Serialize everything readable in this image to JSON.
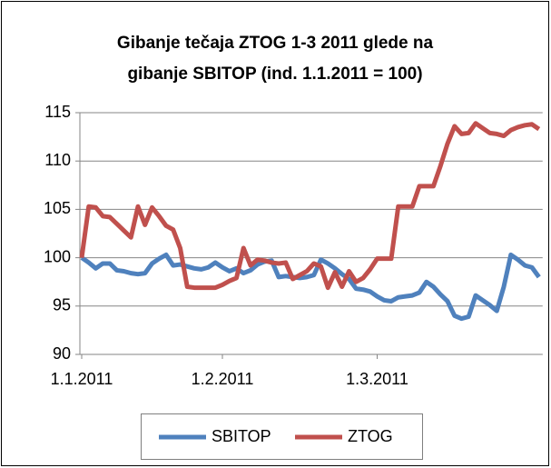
{
  "chart_data": {
    "type": "line",
    "title": [
      "Gibanje tečaja ZTOG 1-3 2011 glede na",
      "gibanje SBITOP (ind. 1.1.2011 = 100)"
    ],
    "categories": [
      "1.1.2011",
      null,
      null,
      null,
      null,
      null,
      null,
      null,
      null,
      null,
      null,
      null,
      null,
      null,
      null,
      null,
      null,
      null,
      null,
      null,
      "1.2.2011",
      null,
      null,
      null,
      null,
      null,
      null,
      null,
      null,
      null,
      null,
      null,
      null,
      null,
      null,
      null,
      null,
      null,
      null,
      null,
      null,
      null,
      "1.3.2011",
      null,
      null,
      null,
      null,
      null,
      null,
      null,
      null,
      null,
      null,
      null,
      null,
      null,
      null,
      null,
      null,
      null,
      null,
      null,
      null,
      null,
      null,
      null
    ],
    "series": [
      {
        "name": "SBITOP",
        "color": "#4f81bd",
        "values": [
          100,
          99.5,
          98.9,
          99.4,
          99.4,
          98.7,
          98.6,
          98.4,
          98.3,
          98.4,
          99.4,
          99.9,
          100.3,
          99.2,
          99.3,
          99.1,
          98.9,
          98.8,
          99.0,
          99.5,
          99.0,
          98.6,
          98.9,
          98.4,
          98.7,
          99.3,
          99.6,
          99.7,
          98.0,
          98.1,
          98.0,
          97.9,
          98.0,
          98.2,
          99.8,
          99.4,
          98.9,
          98.3,
          97.8,
          96.8,
          96.7,
          96.5,
          96.0,
          95.6,
          95.5,
          95.9,
          96.0,
          96.1,
          96.4,
          97.5,
          97.0,
          96.2,
          95.5,
          94.0,
          93.7,
          93.9,
          96.1,
          95.6,
          95.1,
          94.5,
          97.0,
          100.3,
          99.8,
          99.2,
          99.0,
          98.0
        ]
      },
      {
        "name": "ZTOG",
        "color": "#c0504d",
        "values": [
          100,
          105.3,
          105.2,
          104.3,
          104.2,
          103.5,
          102.8,
          102.1,
          105.3,
          103.4,
          105.2,
          104.3,
          103.3,
          102.9,
          101.0,
          97.0,
          96.9,
          96.9,
          96.9,
          96.9,
          97.2,
          97.6,
          97.9,
          101.0,
          99.2,
          99.8,
          99.7,
          99.5,
          99.4,
          99.5,
          97.8,
          98.2,
          98.6,
          99.4,
          99.1,
          96.9,
          98.5,
          97.0,
          98.6,
          97.5,
          97.9,
          98.8,
          99.9,
          99.9,
          99.9,
          105.3,
          105.3,
          105.3,
          107.4,
          107.4,
          107.4,
          109.5,
          111.8,
          113.6,
          112.8,
          112.9,
          113.9,
          113.4,
          112.9,
          112.8,
          112.6,
          113.2,
          113.5,
          113.7,
          113.8,
          113.3
        ]
      }
    ],
    "ylim": [
      90,
      115
    ],
    "yticks": [
      90,
      95,
      100,
      105,
      110,
      115
    ],
    "grid": true,
    "legend": "bottom"
  }
}
